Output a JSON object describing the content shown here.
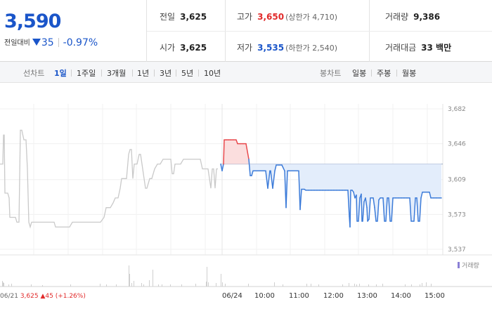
{
  "summary": {
    "current_price": "3,590",
    "change_label": "전일대비",
    "change_amount": "35",
    "change_percent": "-0.97%",
    "stats": {
      "prev_close": {
        "label": "전일",
        "value": "3,625"
      },
      "open": {
        "label": "시가",
        "value": "3,625"
      },
      "high": {
        "label": "고가",
        "value": "3,650",
        "sub": "(상한가 4,710)"
      },
      "low": {
        "label": "저가",
        "value": "3,535",
        "sub": "(하한가 2,540)"
      },
      "volume": {
        "label": "거래량",
        "value": "9,386"
      },
      "trade_value": {
        "label": "거래대금",
        "value": "33 백만"
      }
    }
  },
  "tabs": {
    "line_label": "선차트",
    "line_tabs": [
      "1일",
      "1주일",
      "3개월",
      "1년",
      "3년",
      "5년",
      "10년"
    ],
    "active_line_tab": "1일",
    "candle_label": "봉차트",
    "candle_tabs": [
      "일봉",
      "주봉",
      "월봉"
    ]
  },
  "chart_data": {
    "type": "line",
    "y_ticks": [
      "3,682",
      "3,646",
      "3,609",
      "3,573",
      "3,537"
    ],
    "ylim": [
      3537,
      3682
    ],
    "reference_price": 3625,
    "x_labels": [
      "06/21",
      "06/24",
      "10:00",
      "11:00",
      "12:00",
      "13:00",
      "14:00",
      "15:00"
    ],
    "prev_day_summary": {
      "date": "06/21",
      "price": "3,625",
      "change": "▲45",
      "change_percent": "(+1.26%)"
    },
    "volume_legend": "거래량",
    "series": [
      {
        "values": [
          [
            0,
            3625
          ],
          [
            4,
            3625
          ],
          [
            5,
            3655
          ],
          [
            6,
            3655
          ],
          [
            7,
            3595
          ],
          [
            10,
            3595
          ],
          [
            11,
            3595
          ],
          [
            13,
            3590
          ],
          [
            14,
            3570
          ],
          [
            18,
            3570
          ],
          [
            22,
            3570
          ],
          [
            24,
            3565
          ],
          [
            27,
            3565
          ],
          [
            29,
            3660
          ],
          [
            31,
            3660
          ],
          [
            34,
            3650
          ],
          [
            37,
            3650
          ],
          [
            39,
            3620
          ],
          [
            41,
            3565
          ],
          [
            43,
            3560
          ],
          [
            45,
            3565
          ],
          [
            50,
            3565
          ],
          [
            55,
            3565
          ],
          [
            60,
            3565
          ],
          [
            65,
            3565
          ],
          [
            68,
            3565
          ],
          [
            72,
            3565
          ],
          [
            77,
            3565
          ],
          [
            79,
            3560
          ],
          [
            83,
            3560
          ],
          [
            87,
            3560
          ],
          [
            91,
            3560
          ],
          [
            95,
            3560
          ],
          [
            99,
            3560
          ],
          [
            103,
            3565
          ],
          [
            108,
            3565
          ],
          [
            113,
            3565
          ],
          [
            118,
            3565
          ],
          [
            123,
            3565
          ],
          [
            128,
            3565
          ],
          [
            133,
            3565
          ],
          [
            138,
            3565
          ],
          [
            143,
            3565
          ],
          [
            148,
            3570
          ],
          [
            151,
            3580
          ],
          [
            153,
            3580
          ],
          [
            157,
            3580
          ],
          [
            161,
            3585
          ],
          [
            164,
            3590
          ],
          [
            168,
            3590
          ],
          [
            171,
            3600
          ],
          [
            173,
            3610
          ],
          [
            176,
            3610
          ],
          [
            180,
            3610
          ],
          [
            183,
            3635
          ],
          [
            185,
            3640
          ],
          [
            187,
            3640
          ],
          [
            189,
            3610
          ],
          [
            191,
            3625
          ],
          [
            195,
            3625
          ],
          [
            198,
            3635
          ],
          [
            200,
            3635
          ],
          [
            202,
            3625
          ],
          [
            205,
            3610
          ],
          [
            207,
            3600
          ],
          [
            209,
            3600
          ],
          [
            213,
            3610
          ],
          [
            216,
            3610
          ],
          [
            220,
            3620
          ],
          [
            224,
            3625
          ],
          [
            228,
            3625
          ],
          [
            232,
            3630
          ],
          [
            236,
            3630
          ],
          [
            240,
            3630
          ],
          [
            243,
            3630
          ],
          [
            245,
            3615
          ],
          [
            247,
            3615
          ],
          [
            249,
            3625
          ],
          [
            253,
            3625
          ],
          [
            257,
            3625
          ],
          [
            261,
            3630
          ],
          [
            265,
            3630
          ],
          [
            270,
            3630
          ],
          [
            274,
            3630
          ],
          [
            278,
            3630
          ],
          [
            282,
            3630
          ],
          [
            285,
            3630
          ],
          [
            288,
            3620
          ],
          [
            290,
            3620
          ],
          [
            292,
            3620
          ],
          [
            296,
            3620
          ],
          [
            300,
            3600
          ],
          [
            302,
            3620
          ],
          [
            304,
            3620
          ],
          [
            306,
            3600
          ],
          [
            308,
            3620
          ],
          [
            310,
            3620
          ]
        ]
      },
      {
        "values": [
          [
            314,
            3625
          ],
          [
            316,
            3618
          ],
          [
            318,
            3625
          ],
          [
            319,
            3650
          ],
          [
            322,
            3650
          ],
          [
            325,
            3650
          ],
          [
            328,
            3650
          ],
          [
            332,
            3650
          ],
          [
            336,
            3650
          ],
          [
            338,
            3646
          ],
          [
            342,
            3646
          ],
          [
            346,
            3646
          ],
          [
            350,
            3646
          ],
          [
            354,
            3630
          ],
          [
            356,
            3613
          ],
          [
            358,
            3613
          ],
          [
            360,
            3618
          ],
          [
            363,
            3618
          ],
          [
            366,
            3618
          ],
          [
            370,
            3618
          ],
          [
            374,
            3618
          ],
          [
            378,
            3618
          ],
          [
            381,
            3600
          ],
          [
            384,
            3618
          ],
          [
            385,
            3618
          ],
          [
            388,
            3600
          ],
          [
            391,
            3618
          ],
          [
            393,
            3624
          ],
          [
            397,
            3624
          ],
          [
            401,
            3624
          ],
          [
            405,
            3618
          ],
          [
            407,
            3580
          ],
          [
            409,
            3618
          ],
          [
            413,
            3618
          ],
          [
            417,
            3618
          ],
          [
            421,
            3618
          ],
          [
            425,
            3618
          ],
          [
            427,
            3578
          ],
          [
            429,
            3599
          ],
          [
            433,
            3599
          ],
          [
            435,
            3598
          ],
          [
            439,
            3598
          ],
          [
            443,
            3598
          ],
          [
            447,
            3598
          ],
          [
            451,
            3598
          ],
          [
            455,
            3598
          ],
          [
            459,
            3598
          ],
          [
            463,
            3598
          ],
          [
            467,
            3598
          ],
          [
            471,
            3598
          ],
          [
            475,
            3598
          ],
          [
            479,
            3598
          ],
          [
            483,
            3598
          ],
          [
            487,
            3598
          ],
          [
            491,
            3598
          ],
          [
            495,
            3598
          ],
          [
            497,
            3571
          ],
          [
            498,
            3560
          ],
          [
            499,
            3598
          ],
          [
            501,
            3598
          ],
          [
            503,
            3596
          ],
          [
            505,
            3590
          ],
          [
            507,
            3593
          ],
          [
            508,
            3566
          ],
          [
            510,
            3566
          ],
          [
            512,
            3590
          ],
          [
            514,
            3594
          ],
          [
            515,
            3566
          ],
          [
            516,
            3566
          ],
          [
            518,
            3586
          ],
          [
            520,
            3590
          ],
          [
            522,
            3580
          ],
          [
            523,
            3566
          ],
          [
            525,
            3568
          ],
          [
            527,
            3590
          ],
          [
            531,
            3590
          ],
          [
            533,
            3580
          ],
          [
            535,
            3566
          ],
          [
            537,
            3566
          ],
          [
            539,
            3588
          ],
          [
            541,
            3590
          ],
          [
            545,
            3590
          ],
          [
            547,
            3566
          ],
          [
            549,
            3566
          ],
          [
            551,
            3590
          ],
          [
            553,
            3590
          ],
          [
            555,
            3566
          ],
          [
            557,
            3566
          ],
          [
            559,
            3590
          ],
          [
            563,
            3590
          ],
          [
            567,
            3590
          ],
          [
            571,
            3590
          ],
          [
            575,
            3590
          ],
          [
            579,
            3590
          ],
          [
            583,
            3590
          ],
          [
            585,
            3566
          ],
          [
            589,
            3566
          ],
          [
            591,
            3590
          ],
          [
            593,
            3590
          ],
          [
            595,
            3566
          ],
          [
            597,
            3566
          ],
          [
            599,
            3590
          ],
          [
            601,
            3596
          ],
          [
            603,
            3596
          ],
          [
            605,
            3596
          ],
          [
            607,
            3596
          ],
          [
            609,
            3596
          ],
          [
            611,
            3596
          ],
          [
            613,
            3590
          ],
          [
            617,
            3590
          ],
          [
            621,
            3590
          ],
          [
            625,
            3590
          ],
          [
            628,
            3590
          ]
        ]
      }
    ],
    "volume_bars": [
      [
        3,
        8
      ],
      [
        4,
        6
      ],
      [
        5,
        5
      ],
      [
        12,
        3
      ],
      [
        16,
        4
      ],
      [
        44,
        3
      ],
      [
        60,
        2
      ],
      [
        100,
        3
      ],
      [
        142,
        4
      ],
      [
        151,
        3
      ],
      [
        165,
        3
      ],
      [
        183,
        30
      ],
      [
        184,
        18
      ],
      [
        187,
        5
      ],
      [
        190,
        8
      ],
      [
        201,
        5
      ],
      [
        204,
        3
      ],
      [
        212,
        9
      ],
      [
        217,
        24
      ],
      [
        225,
        3
      ],
      [
        230,
        3
      ],
      [
        242,
        3
      ],
      [
        258,
        3
      ],
      [
        278,
        4
      ],
      [
        293,
        7
      ],
      [
        294,
        28
      ],
      [
        296,
        6
      ],
      [
        307,
        5
      ],
      [
        314,
        18
      ],
      [
        316,
        6
      ],
      [
        320,
        4
      ],
      [
        353,
        4
      ],
      [
        390,
        6
      ],
      [
        402,
        3
      ],
      [
        436,
        4
      ],
      [
        442,
        4
      ],
      [
        453,
        3
      ],
      [
        487,
        3
      ],
      [
        496,
        5
      ],
      [
        504,
        4
      ],
      [
        507,
        3
      ],
      [
        511,
        4
      ],
      [
        524,
        3
      ],
      [
        535,
        3
      ],
      [
        544,
        4
      ],
      [
        576,
        3
      ],
      [
        585,
        3
      ],
      [
        597,
        3
      ],
      [
        600,
        5
      ],
      [
        606,
        6
      ],
      [
        613,
        4
      ]
    ]
  }
}
